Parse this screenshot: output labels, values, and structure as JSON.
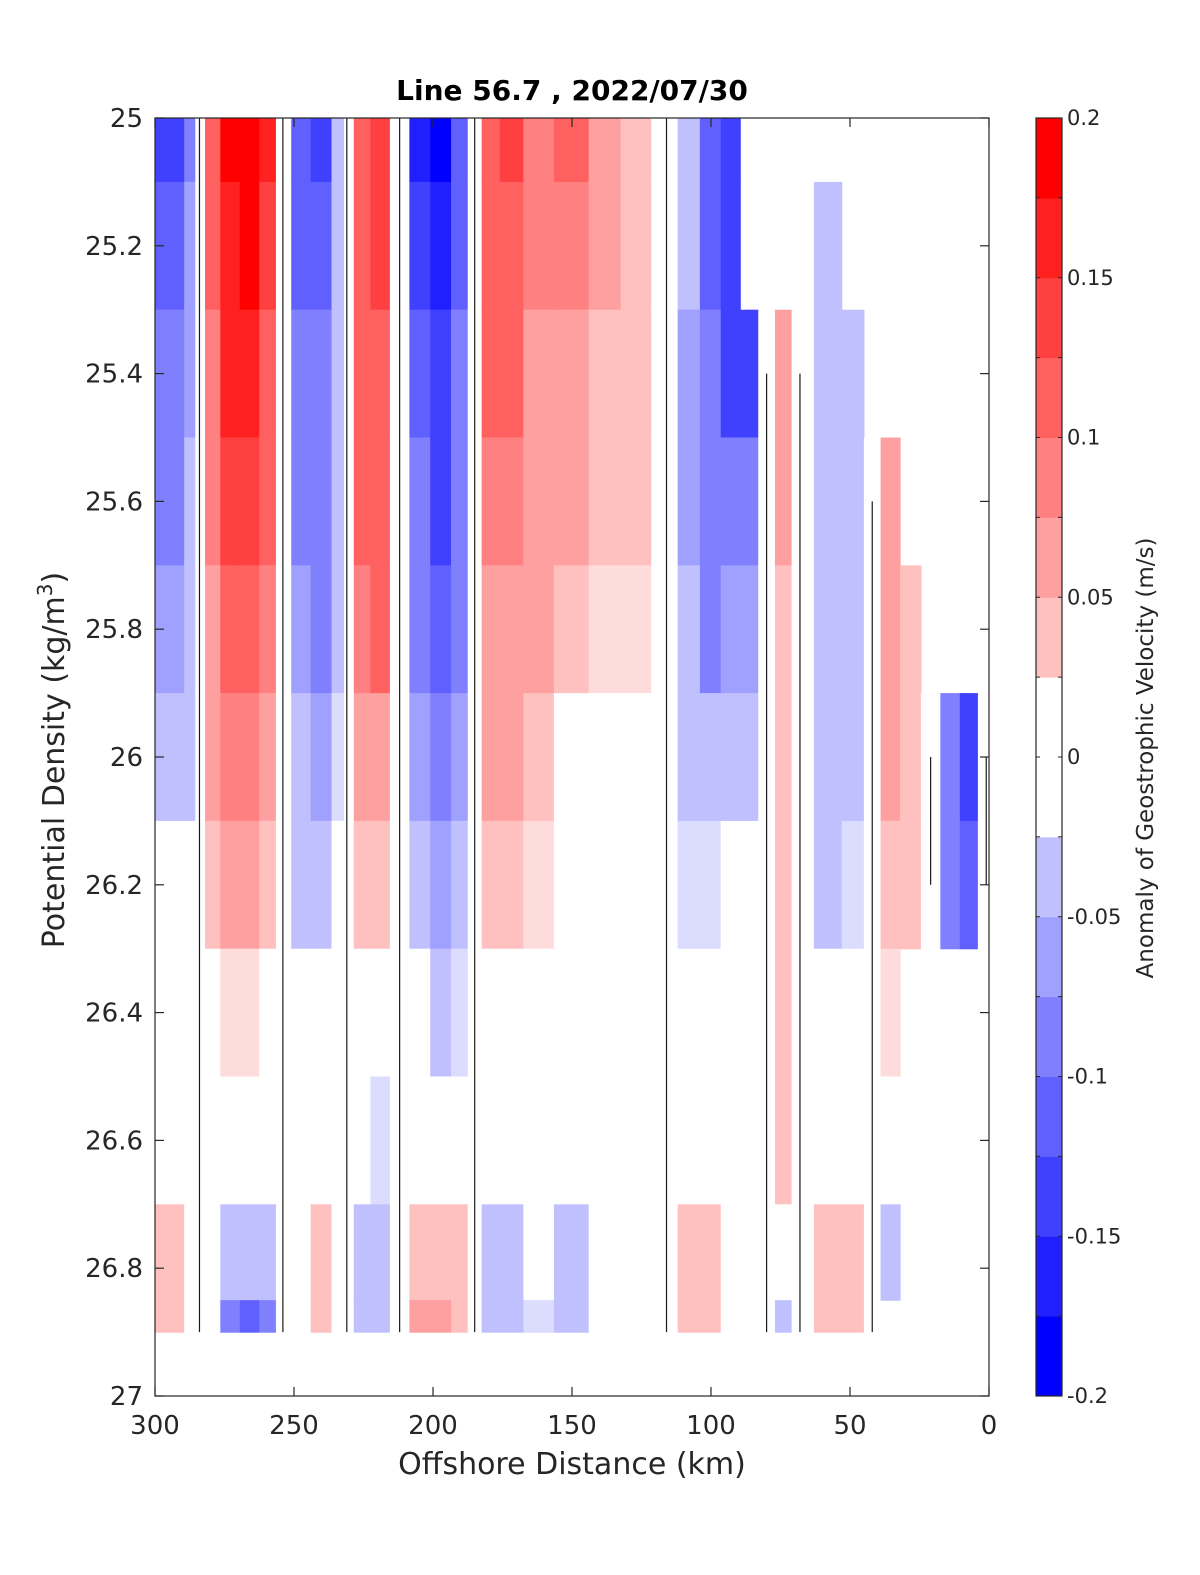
{
  "chart_data": {
    "type": "heatmap",
    "subtype": "filled-contour",
    "title": "Line 56.7 , 2022/07/30",
    "xlabel": "Offshore Distance (km)",
    "ylabel": "Potential Density (kg/m3)",
    "ylabel_parts": {
      "main": "Potential Density (kg/m",
      "superscript": "3",
      "close": ")"
    },
    "xlim": [
      300,
      0
    ],
    "x_reversed": true,
    "ylim": [
      25,
      27
    ],
    "y_reversed": true,
    "x_ticks": [
      300,
      250,
      200,
      150,
      100,
      50,
      0
    ],
    "y_ticks": [
      "25",
      "25.2",
      "25.4",
      "25.6",
      "25.8",
      "26",
      "26.2",
      "26.4",
      "26.6",
      "26.8",
      "27"
    ],
    "grid": false,
    "colorbar": {
      "label": "Anomaly of Geostrophic Velocity (m/s)",
      "range": [
        -0.2,
        0.2
      ],
      "ticks": [
        "-0.2",
        "-0.15",
        "-0.1",
        "-0.05",
        "0",
        "0.05",
        "0.1",
        "0.15",
        "0.2"
      ],
      "levels": 16,
      "colors_low_to_high": [
        "#0000ff",
        "#2020ff",
        "#4040ff",
        "#6060ff",
        "#8080ff",
        "#a0a0ff",
        "#c0c0ff",
        "#dcdcff",
        "#ffffff",
        "#ffdcdc",
        "#ffc0c0",
        "#ffa0a0",
        "#ff8080",
        "#ff6060",
        "#ff4040",
        "#ff2020",
        "#ff0000"
      ]
    },
    "columns": [
      {
        "x": 300,
        "values": [
          -0.13,
          -0.12,
          -0.1,
          -0.08,
          -0.06,
          -0.04,
          0,
          0,
          0,
          0.03,
          0.03
        ]
      },
      {
        "x": 292,
        "values": [
          -0.14,
          -0.12,
          -0.1,
          -0.08,
          -0.06,
          -0.04,
          0,
          0,
          0,
          0.03,
          0.03
        ]
      },
      {
        "x": 287,
        "values": [
          -0.08,
          -0.07,
          -0.06,
          -0.05,
          -0.04,
          -0.03,
          0,
          0,
          0,
          0,
          0
        ]
      },
      {
        "x": 284,
        "values": [
          0,
          0,
          0,
          0,
          0,
          0,
          0,
          0,
          0,
          0,
          0
        ]
      },
      {
        "x": 280,
        "values": [
          0.1,
          0.1,
          0.09,
          0.08,
          0.07,
          0.06,
          0.04,
          0,
          0,
          0,
          0
        ]
      },
      {
        "x": 273,
        "values": [
          0.18,
          0.17,
          0.16,
          0.13,
          0.11,
          0.08,
          0.05,
          0.02,
          0,
          -0.05,
          -0.09
        ]
      },
      {
        "x": 266,
        "values": [
          0.2,
          0.18,
          0.16,
          0.14,
          0.12,
          0.09,
          0.06,
          0.02,
          0,
          -0.05,
          -0.12
        ]
      },
      {
        "x": 259,
        "values": [
          0.16,
          0.15,
          0.12,
          0.1,
          0.08,
          0.06,
          0.03,
          0,
          0,
          -0.04,
          -0.1
        ]
      },
      {
        "x": 254,
        "values": [
          0,
          0,
          0,
          0,
          0,
          0,
          0,
          0,
          0,
          0,
          0
        ]
      },
      {
        "x": 248,
        "values": [
          -0.12,
          -0.11,
          -0.1,
          -0.08,
          -0.07,
          -0.05,
          -0.03,
          0,
          0,
          0,
          0
        ]
      },
      {
        "x": 240,
        "values": [
          -0.14,
          -0.12,
          -0.1,
          -0.1,
          -0.09,
          -0.07,
          -0.04,
          0,
          0,
          0.03,
          0.04
        ]
      },
      {
        "x": 233,
        "values": [
          -0.04,
          -0.04,
          -0.04,
          -0.04,
          -0.03,
          -0.02,
          0,
          0,
          0,
          0,
          0
        ]
      },
      {
        "x": 231,
        "values": [
          0,
          0,
          0,
          0,
          0,
          0,
          0,
          0,
          0,
          0,
          0
        ]
      },
      {
        "x": 226,
        "values": [
          0.12,
          0.12,
          0.11,
          0.1,
          0.09,
          0.06,
          0.03,
          0,
          0,
          -0.03,
          -0.04
        ]
      },
      {
        "x": 219,
        "values": [
          0.14,
          0.13,
          0.12,
          0.11,
          0.1,
          0.06,
          0.03,
          0,
          -0.02,
          -0.04,
          -0.04
        ]
      },
      {
        "x": 212,
        "values": [
          0,
          0,
          0,
          0,
          0,
          0,
          0,
          0,
          0,
          0,
          0
        ]
      },
      {
        "x": 205,
        "values": [
          -0.16,
          -0.14,
          -0.12,
          -0.1,
          -0.09,
          -0.07,
          -0.05,
          0,
          0,
          0.03,
          0.05
        ]
      },
      {
        "x": 197,
        "values": [
          -0.18,
          -0.17,
          -0.15,
          -0.13,
          -0.11,
          -0.09,
          -0.06,
          -0.03,
          0,
          0.04,
          0.06
        ]
      },
      {
        "x": 190,
        "values": [
          -0.12,
          -0.11,
          -0.1,
          -0.09,
          -0.08,
          -0.07,
          -0.05,
          -0.02,
          0,
          0.03,
          0.04
        ]
      },
      {
        "x": 185,
        "values": [
          0,
          0,
          0,
          0,
          0,
          0,
          0,
          0,
          0,
          0,
          0
        ]
      },
      {
        "x": 180,
        "values": [
          0.12,
          0.11,
          0.1,
          0.08,
          0.07,
          0.06,
          0.04,
          0,
          0,
          -0.03,
          -0.03
        ]
      },
      {
        "x": 172,
        "values": [
          0.14,
          0.12,
          0.1,
          0.08,
          0.07,
          0.05,
          0.03,
          0,
          0,
          -0.03,
          -0.04
        ]
      },
      {
        "x": 163,
        "values": [
          0.08,
          0.08,
          0.07,
          0.06,
          0.05,
          0.03,
          0.02,
          0,
          0,
          0,
          -0.02
        ]
      },
      {
        "x": 150,
        "values": [
          0.1,
          0.08,
          0.06,
          0.05,
          0.03,
          0,
          0,
          0,
          0,
          -0.03,
          -0.03
        ]
      },
      {
        "x": 138,
        "values": [
          0.06,
          0.05,
          0.04,
          0.03,
          0.02,
          0,
          0,
          0,
          0,
          0,
          0
        ]
      },
      {
        "x": 127,
        "values": [
          0.04,
          0.04,
          0.04,
          0.03,
          0.02,
          0,
          0,
          0,
          0,
          0,
          0
        ]
      },
      {
        "x": 116,
        "values": [
          0,
          0,
          0,
          0,
          0,
          0,
          0,
          0,
          0,
          0,
          0
        ]
      },
      {
        "x": 108,
        "values": [
          -0.05,
          -0.05,
          -0.06,
          -0.06,
          -0.05,
          -0.04,
          -0.02,
          0,
          0,
          0.03,
          0.04
        ]
      },
      {
        "x": 100,
        "values": [
          -0.12,
          -0.11,
          -0.1,
          -0.09,
          -0.08,
          -0.05,
          -0.02,
          0,
          0,
          0.04,
          0.04
        ]
      },
      {
        "x": 93,
        "values": [
          -0.15,
          -0.15,
          -0.13,
          -0.1,
          -0.07,
          -0.04,
          0,
          0,
          0,
          0,
          0
        ]
      },
      {
        "x": 86,
        "values": [
          null,
          null,
          -0.14,
          -0.1,
          -0.06,
          -0.03,
          0,
          0,
          0,
          0,
          0
        ]
      },
      {
        "x": 80,
        "values": [
          null,
          null,
          0,
          0,
          0,
          0,
          0,
          0,
          0,
          0,
          0
        ]
      },
      {
        "x": 74,
        "values": [
          null,
          null,
          0.05,
          0.05,
          0.04,
          0.04,
          0.04,
          0.03,
          0.03,
          0,
          -0.04
        ]
      },
      {
        "x": 68,
        "values": [
          null,
          null,
          0,
          0,
          0,
          0,
          0,
          0,
          0,
          0,
          0
        ]
      },
      {
        "x": 58,
        "values": [
          null,
          -0.04,
          -0.04,
          -0.04,
          -0.04,
          -0.04,
          -0.03,
          0,
          0,
          0.04,
          0.04
        ]
      },
      {
        "x": 48,
        "values": [
          null,
          null,
          -0.04,
          -0.04,
          -0.03,
          -0.03,
          -0.02,
          0,
          0,
          0.03,
          0.03
        ]
      },
      {
        "x": 42,
        "values": [
          null,
          null,
          null,
          0,
          0,
          0,
          0,
          0,
          0,
          0,
          0
        ]
      },
      {
        "x": 36,
        "values": [
          null,
          null,
          null,
          0.05,
          0.06,
          0.05,
          0.04,
          0.02,
          0,
          -0.03,
          null
        ]
      },
      {
        "x": 28,
        "values": [
          null,
          null,
          null,
          null,
          0.04,
          0.04,
          0.03,
          null,
          null,
          null,
          null
        ]
      },
      {
        "x": 21,
        "values": [
          null,
          null,
          null,
          null,
          null,
          0,
          0,
          null,
          null,
          null,
          null
        ]
      },
      {
        "x": 14,
        "values": [
          null,
          null,
          null,
          null,
          null,
          -0.1,
          -0.08,
          null,
          null,
          null,
          null
        ]
      },
      {
        "x": 7,
        "values": [
          null,
          null,
          null,
          null,
          null,
          -0.14,
          -0.12,
          null,
          null,
          null,
          null
        ]
      },
      {
        "x": 1,
        "values": [
          null,
          null,
          null,
          null,
          null,
          0,
          0,
          null,
          null,
          null,
          null
        ]
      }
    ],
    "column_y": [
      25,
      25.2,
      25.4,
      25.6,
      25.8,
      26,
      26.2,
      26.4,
      26.6,
      26.8,
      26.9
    ]
  }
}
